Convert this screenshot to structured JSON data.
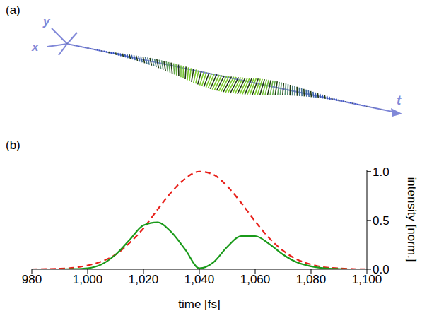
{
  "panel_a": {
    "label": "(a)",
    "axis_labels": [
      "y",
      "x",
      "t"
    ]
  },
  "chart_data": {
    "type": "line",
    "panel_label": "(b)",
    "x_label": "time [fs]",
    "y_label": "intensity [norm.]",
    "xlim": [
      980,
      1100
    ],
    "xticks": [
      980,
      {
        "value": 1000,
        "label": "1,000"
      },
      {
        "value": 1020,
        "label": "1,020"
      },
      {
        "value": 1040,
        "label": "1,040"
      },
      {
        "value": 1060,
        "label": "1,060"
      },
      {
        "value": 1080,
        "label": "1,080"
      },
      {
        "value": 1100,
        "label": "1,100"
      }
    ],
    "ylim": [
      0,
      1.02
    ],
    "yticks": [
      {
        "value": 0,
        "label": "0.0"
      },
      0.5,
      {
        "value": 1,
        "label": "1.0"
      }
    ],
    "grid": false,
    "x": [
      980,
      985,
      990,
      995,
      1000,
      1005,
      1010,
      1015,
      1020,
      1025,
      1030,
      1035,
      1040,
      1045,
      1050,
      1055,
      1060,
      1065,
      1070,
      1075,
      1080,
      1085,
      1090,
      1095,
      1100
    ],
    "series": [
      {
        "color": "#e8201a",
        "line_style": "dashed",
        "values": [
          0,
          0.002,
          0.006,
          0.016,
          0.04,
          0.08,
          0.15,
          0.27,
          0.42,
          0.61,
          0.79,
          0.93,
          1.0,
          0.97,
          0.85,
          0.68,
          0.49,
          0.32,
          0.19,
          0.1,
          0.05,
          0.02,
          0.01,
          0.003,
          0
        ]
      },
      {
        "color": "#1a9a1a",
        "line_style": "solid",
        "values": [
          0,
          0,
          0,
          0.002,
          0.01,
          0.05,
          0.15,
          0.3,
          0.45,
          0.48,
          0.38,
          0.2,
          0.01,
          0.07,
          0.23,
          0.34,
          0.34,
          0.26,
          0.15,
          0.07,
          0.03,
          0.01,
          0.003,
          0,
          0
        ]
      }
    ]
  }
}
